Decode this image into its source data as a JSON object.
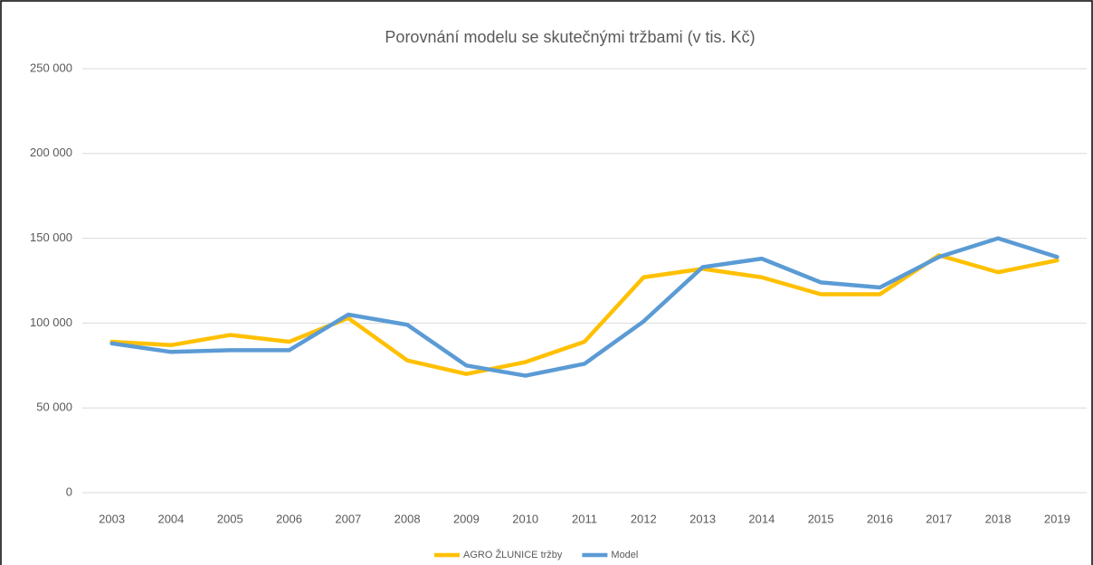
{
  "chart_data": {
    "type": "line",
    "title": "Porovnání modelu se skutečnými tržbami (v tis. Kč)",
    "categories": [
      "2003",
      "2004",
      "2005",
      "2006",
      "2007",
      "2008",
      "2009",
      "2010",
      "2011",
      "2012",
      "2013",
      "2014",
      "2015",
      "2016",
      "2017",
      "2018",
      "2019"
    ],
    "series": [
      {
        "name": "AGRO ŽLUNICE tržby",
        "color": "#ffc000",
        "values": [
          89000,
          87000,
          93000,
          89000,
          103000,
          78000,
          70000,
          77000,
          89000,
          127000,
          132000,
          127000,
          117000,
          117000,
          140000,
          130000,
          137000
        ]
      },
      {
        "name": "Model",
        "color": "#5b9bd5",
        "values": [
          88000,
          83000,
          84000,
          84000,
          105000,
          99000,
          75000,
          69000,
          76000,
          101000,
          133000,
          138000,
          124000,
          121000,
          139000,
          150000,
          139000
        ]
      }
    ],
    "ylim": [
      0,
      250000
    ],
    "yticks": [
      0,
      {
        "value": 50000,
        "label": "50 000"
      },
      {
        "value": 100000,
        "label": "100 000"
      },
      {
        "value": 150000,
        "label": "150 000"
      },
      {
        "value": 200000,
        "label": "200 000"
      },
      {
        "value": 250000,
        "label": "250 000"
      }
    ],
    "grid": true,
    "legend": "bottom"
  }
}
